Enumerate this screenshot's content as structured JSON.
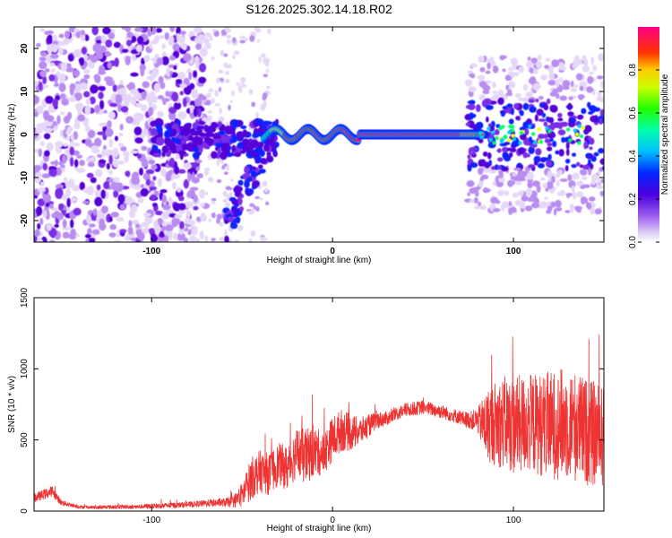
{
  "title": "S126.2025.302.14.18.R02",
  "colors": {
    "signal": "#ee3333",
    "spectrogram_palette": [
      "#e5d7f7",
      "#b88cf0",
      "#7c2ee6",
      "#5500d8",
      "#1020ff",
      "#00ccff",
      "#00ff66",
      "#ffff00",
      "#ff2222",
      "#ff0099"
    ]
  },
  "chart_data": [
    {
      "type": "heatmap",
      "name": "spectrogram",
      "xlabel": "Height of straight line (km)",
      "ylabel": "Frequency (Hz)",
      "xlim": [
        -165,
        150
      ],
      "ylim": [
        -25,
        25
      ],
      "xticks": [
        -100,
        0,
        100
      ],
      "xtick_labels": [
        "-100",
        "0",
        "100"
      ],
      "yticks": [
        -20,
        -10,
        0,
        10,
        20
      ],
      "ytick_labels": [
        "-20",
        "-10",
        "0",
        "10",
        "20"
      ],
      "colorbar": {
        "label": "Normalized spectral amplitude",
        "range": [
          0,
          1
        ],
        "ticks": [
          0.0,
          0.2,
          0.4,
          0.6,
          0.8
        ],
        "tick_labels": [
          "0.0",
          "0.2",
          "0.4",
          "0.6",
          "0.8"
        ]
      },
      "dominant_line": {
        "frequency": 0,
        "x_start": -30,
        "x_end": 75,
        "amplitude_max": 1.0
      }
    },
    {
      "type": "line",
      "name": "snr",
      "xlabel": "Height of straight line (km)",
      "ylabel": "SNR (10 * v/v)",
      "xlim": [
        -165,
        150
      ],
      "ylim": [
        0,
        1500
      ],
      "xticks": [
        -100,
        0,
        100
      ],
      "xtick_labels": [
        "-100",
        "0",
        "100"
      ],
      "yticks": [
        0,
        500,
        1000,
        1500
      ],
      "ytick_labels": [
        "0",
        "500",
        "1000",
        "1500"
      ],
      "series": [
        {
          "name": "SNR",
          "x": [
            -165,
            -155,
            -150,
            -140,
            -130,
            -120,
            -110,
            -100,
            -90,
            -80,
            -70,
            -60,
            -55,
            -50,
            -45,
            -40,
            -35,
            -30,
            -25,
            -20,
            -15,
            -10,
            -5,
            0,
            5,
            10,
            15,
            20,
            25,
            30,
            40,
            50,
            60,
            70,
            75,
            80,
            85,
            90,
            95,
            100,
            110,
            120,
            130,
            140,
            150
          ],
          "values": [
            90,
            140,
            60,
            30,
            25,
            30,
            30,
            35,
            40,
            45,
            55,
            60,
            65,
            110,
            230,
            280,
            260,
            330,
            300,
            410,
            380,
            420,
            400,
            510,
            570,
            550,
            560,
            600,
            640,
            650,
            710,
            730,
            700,
            660,
            640,
            640,
            600,
            620,
            620,
            600,
            620,
            600,
            620,
            560,
            520
          ],
          "noise_amplitude": [
            30,
            40,
            20,
            12,
            12,
            15,
            15,
            18,
            20,
            20,
            25,
            30,
            40,
            90,
            150,
            150,
            150,
            150,
            160,
            180,
            200,
            180,
            150,
            160,
            150,
            130,
            100,
            80,
            60,
            50,
            50,
            50,
            50,
            50,
            60,
            80,
            250,
            300,
            330,
            350,
            350,
            380,
            400,
            380,
            360
          ]
        }
      ]
    }
  ]
}
